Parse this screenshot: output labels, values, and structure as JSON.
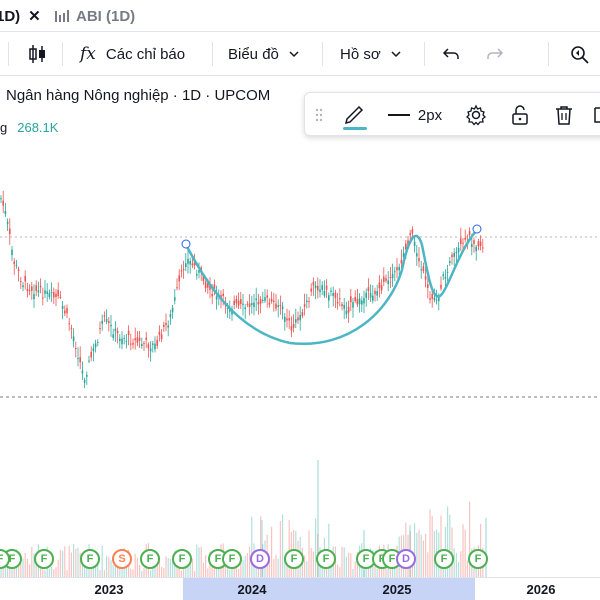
{
  "tabs": {
    "active_label": "1D)",
    "close_glyph": "✕",
    "second_label": "ABI (1D)"
  },
  "toolbar": {
    "indicators_label": "Các chỉ báo",
    "chart_type_label": "Biểu đồ",
    "profile_label": "Hồ sơ",
    "indicators_glyph": "fx"
  },
  "legend": {
    "title": "Ngân hàng Nông nghiệp · 1D · UPCOM",
    "volume_prefix": "g",
    "volume_value": "268.1K"
  },
  "drawing_toolbar": {
    "line_width_label": "2px"
  },
  "events": [
    {
      "letter": "F",
      "kind": "F"
    },
    {
      "letter": "F",
      "kind": "F"
    },
    {
      "letter": "F",
      "kind": "F"
    },
    {
      "letter": "S",
      "kind": "S"
    },
    {
      "letter": "F",
      "kind": "F"
    },
    {
      "letter": "F",
      "kind": "F"
    },
    {
      "letter": "F",
      "kind": "F"
    },
    {
      "letter": "F",
      "kind": "F"
    },
    {
      "letter": "D",
      "kind": "D"
    },
    {
      "letter": "F",
      "kind": "F"
    },
    {
      "letter": "F",
      "kind": "F"
    },
    {
      "letter": "F",
      "kind": "F"
    },
    {
      "letter": "F",
      "kind": "F"
    },
    {
      "letter": "F",
      "kind": "F"
    },
    {
      "letter": "D",
      "kind": "D"
    },
    {
      "letter": "F",
      "kind": "F"
    },
    {
      "letter": "F",
      "kind": "F"
    },
    {
      "letter": "F",
      "kind": "F"
    }
  ],
  "time_axis": {
    "ticks": [
      "2023",
      "2024",
      "2025",
      "2026"
    ]
  },
  "colors": {
    "up": "#26a69a",
    "down": "#ef5350",
    "drawing": "#4db6c4",
    "accent": "#2962ff",
    "event_green": "#4caf50",
    "event_orange": "#ff7f50",
    "event_purple": "#9c6ade"
  }
}
